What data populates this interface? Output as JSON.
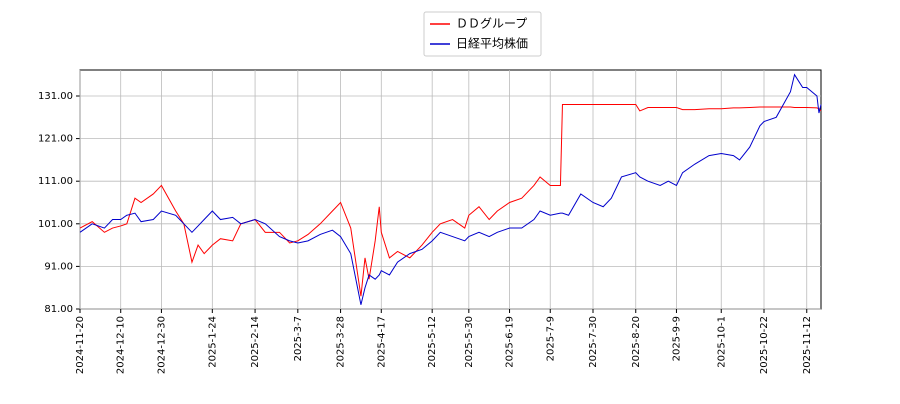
{
  "chart_data": {
    "type": "line",
    "x": [
      "2024-11-20",
      "2024-11-26",
      "2024-12-02",
      "2024-12-06",
      "2024-12-10",
      "2024-12-13",
      "2024-12-17",
      "2024-12-20",
      "2024-12-26",
      "2024-12-30",
      "2025-01-06",
      "2025-01-10",
      "2025-01-14",
      "2025-01-17",
      "2025-01-20",
      "2025-01-24",
      "2025-01-28",
      "2025-02-03",
      "2025-02-07",
      "2025-02-14",
      "2025-02-19",
      "2025-02-26",
      "2025-03-03",
      "2025-03-07",
      "2025-03-12",
      "2025-03-18",
      "2025-03-24",
      "2025-03-28",
      "2025-04-02",
      "2025-04-07",
      "2025-04-09",
      "2025-04-11",
      "2025-04-14",
      "2025-04-16",
      "2025-04-17",
      "2025-04-21",
      "2025-04-25",
      "2025-05-01",
      "2025-05-07",
      "2025-05-12",
      "2025-05-16",
      "2025-05-22",
      "2025-05-28",
      "2025-05-30",
      "2025-06-04",
      "2025-06-09",
      "2025-06-13",
      "2025-06-19",
      "2025-06-25",
      "2025-07-01",
      "2025-07-04",
      "2025-07-09",
      "2025-07-14",
      "2025-07-15",
      "2025-07-18",
      "2025-07-24",
      "2025-07-30",
      "2025-08-04",
      "2025-08-08",
      "2025-08-13",
      "2025-08-20",
      "2025-08-22",
      "2025-08-26",
      "2025-09-01",
      "2025-09-05",
      "2025-09-09",
      "2025-09-12",
      "2025-09-18",
      "2025-09-25",
      "2025-10-01",
      "2025-10-07",
      "2025-10-10",
      "2025-10-15",
      "2025-10-20",
      "2025-10-22",
      "2025-10-28",
      "2025-11-04",
      "2025-11-06",
      "2025-11-10",
      "2025-11-12",
      "2025-11-17",
      "2025-11-18",
      "2025-11-19"
    ],
    "series": [
      {
        "name": "ＤＤグループ",
        "color": "#ff0000",
        "values": [
          100,
          101.5,
          99,
          100,
          100.5,
          101,
          107,
          106,
          108,
          110,
          104,
          101,
          92,
          96,
          94,
          96,
          97.5,
          97,
          101,
          102,
          99,
          99,
          96.5,
          97,
          98.5,
          101,
          104,
          106,
          100,
          84,
          93,
          88,
          97,
          105,
          99,
          93,
          94.5,
          93,
          96,
          99,
          101,
          102,
          100,
          103,
          105,
          102,
          104,
          106,
          107,
          110,
          112,
          110,
          110,
          129,
          129,
          129,
          129,
          129,
          129,
          129,
          129,
          127.5,
          128.3,
          128.3,
          128.3,
          128.3,
          127.8,
          127.8,
          128,
          128,
          128.2,
          128.2,
          128.3,
          128.4,
          128.4,
          128.4,
          128.4,
          128.3,
          128.3,
          128.3,
          128.2,
          128,
          127.5
        ]
      },
      {
        "name": "日経平均株価",
        "color": "#0000cc",
        "values": [
          99,
          101,
          100,
          102,
          102,
          103,
          103.5,
          101.5,
          102,
          104,
          103,
          101,
          99,
          100.5,
          102,
          104,
          102,
          102.5,
          101,
          102,
          101,
          98,
          97,
          96.5,
          97,
          98.5,
          99.5,
          98,
          94,
          82,
          86,
          89,
          88,
          89,
          90,
          89,
          92,
          94,
          95,
          97,
          99,
          98,
          97,
          98,
          99,
          98,
          99,
          100,
          100,
          102,
          104,
          103,
          103.5,
          103.5,
          103,
          108,
          106,
          105,
          107,
          112,
          113,
          112,
          111,
          110,
          111,
          110,
          113,
          115,
          117,
          117.5,
          117,
          116,
          119,
          124,
          125,
          126,
          132,
          136,
          133,
          133,
          131,
          127,
          129
        ]
      }
    ],
    "xlim": [
      "2024-11-20",
      "2025-11-19"
    ],
    "xticks": [
      "2024-11-20",
      "2024-12-10",
      "2024-12-30",
      "2025-1-24",
      "2025-2-14",
      "2025-3-7",
      "2025-3-28",
      "2025-4-17",
      "2025-5-12",
      "2025-5-30",
      "2025-6-19",
      "2025-7-9",
      "2025-7-30",
      "2025-8-20",
      "2025-9-9",
      "2025-10-1",
      "2025-10-22",
      "2025-11-12"
    ],
    "ylim": [
      81,
      137.1
    ],
    "yticks": [
      {
        "value": 81,
        "label": "81.00"
      },
      {
        "value": 91,
        "label": "91.00"
      },
      {
        "value": 101,
        "label": "101.00"
      },
      {
        "value": 111,
        "label": "111.00"
      },
      {
        "value": 121,
        "label": "121.00"
      },
      {
        "value": 131,
        "label": "131.00"
      }
    ],
    "grid": true,
    "legend": "upper center"
  }
}
